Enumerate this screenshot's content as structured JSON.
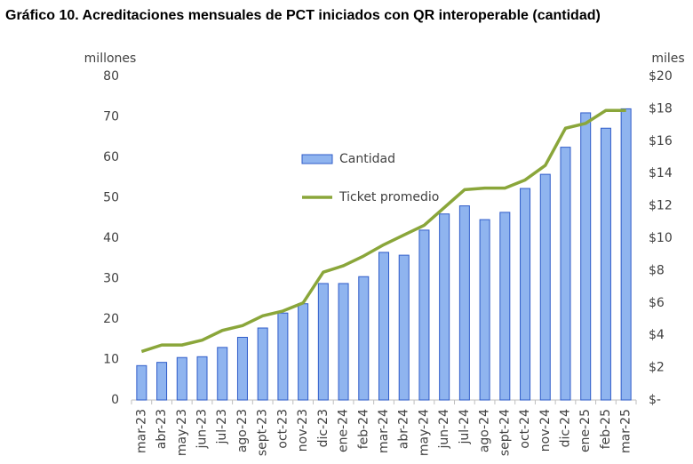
{
  "chart_data": {
    "type": "bar-line",
    "title": "Gráfico 10. Acreditaciones mensuales de PCT iniciados con QR interoperable (cantidad)",
    "ylabel": "millones",
    "y2label": "miles",
    "categories": [
      "mar-23",
      "abr-23",
      "may-23",
      "jun-23",
      "jul-23",
      "ago-23",
      "sept-23",
      "oct-23",
      "nov-23",
      "dic-23",
      "ene-24",
      "feb-24",
      "mar-24",
      "abr-24",
      "may-24",
      "jun-24",
      "jul-24",
      "ago-24",
      "sept-24",
      "oct-24",
      "nov-24",
      "dic-24",
      "ene-25",
      "feb-25",
      "mar-25"
    ],
    "series": [
      {
        "name": "Cantidad",
        "type": "bar",
        "color": "#8fb4ef",
        "edge_color": "#2f5cc9",
        "values": [
          8.5,
          9.3,
          10.5,
          10.7,
          13,
          15.5,
          17.8,
          21.5,
          23.8,
          28.8,
          28.8,
          30.5,
          36.5,
          35.8,
          42,
          46,
          48,
          44.6,
          46.4,
          52.3,
          55.8,
          62.5,
          71,
          67.2,
          72
        ]
      },
      {
        "name": "Ticket promedio",
        "type": "line",
        "axis": "y2",
        "color": "#8aa63a",
        "values": [
          3.0,
          3.4,
          3.4,
          3.7,
          4.3,
          4.6,
          5.2,
          5.5,
          6.0,
          7.9,
          8.3,
          8.9,
          9.6,
          10.2,
          10.8,
          11.9,
          13.0,
          13.1,
          13.1,
          13.6,
          14.5,
          16.8,
          17.1,
          17.9,
          17.9
        ]
      }
    ],
    "ylim": [
      0,
      80
    ],
    "yticks": [
      0,
      10,
      20,
      30,
      40,
      50,
      60,
      70,
      80
    ],
    "y2lim": [
      0,
      20
    ],
    "y2ticks": [
      {
        "value": 0,
        "label": "$-"
      },
      {
        "value": 2,
        "label": "$2"
      },
      {
        "value": 4,
        "label": "$4"
      },
      {
        "value": 6,
        "label": "$6"
      },
      {
        "value": 8,
        "label": "$8"
      },
      {
        "value": 10,
        "label": "$10"
      },
      {
        "value": 12,
        "label": "$12"
      },
      {
        "value": 14,
        "label": "$14"
      },
      {
        "value": 16,
        "label": "$16"
      },
      {
        "value": 18,
        "label": "$18"
      },
      {
        "value": 20,
        "label": "$20"
      }
    ],
    "grid": false,
    "legend": "center"
  }
}
